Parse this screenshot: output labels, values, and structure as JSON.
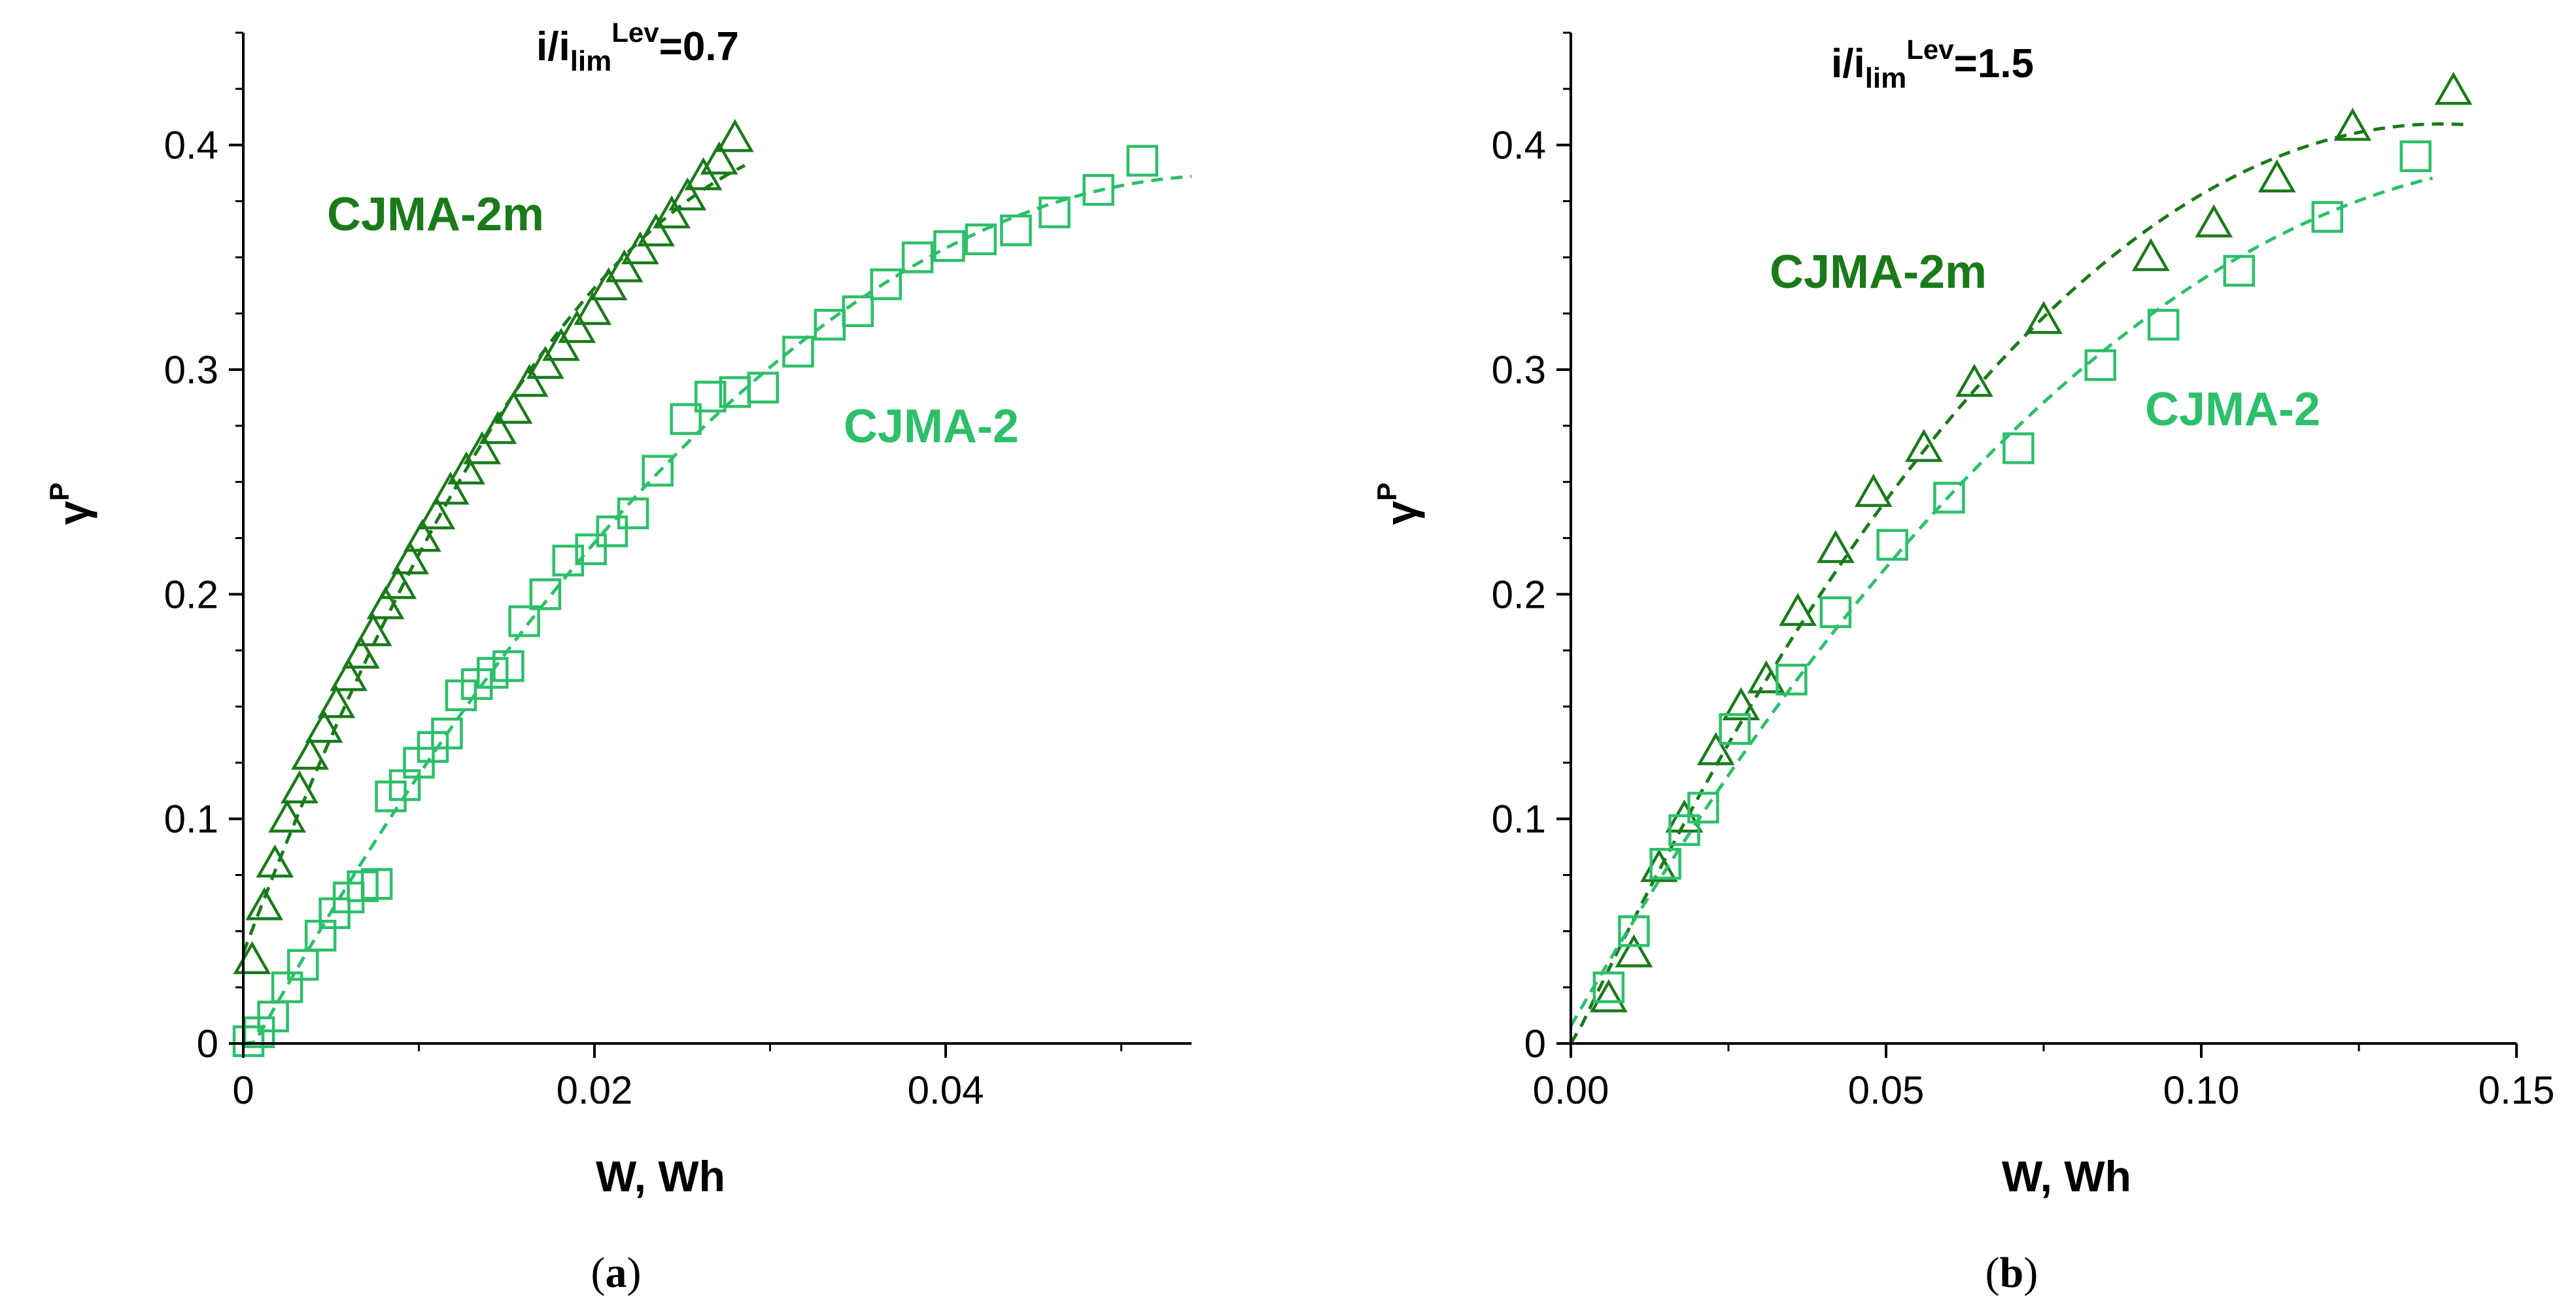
{
  "colors": {
    "cjma2m": "#1a7a1a",
    "cjma2": "#2dbf6a",
    "axis": "#000000"
  },
  "chart_data": [
    {
      "type": "scatter",
      "panel": "(a)",
      "caption_letter": "a",
      "title_main": "i/i",
      "title_sub": "lim",
      "title_sup": "Lev",
      "title_value": "=0.7",
      "xlabel": "W, Wh",
      "ylabel": "γ",
      "ylabel_sup": "P",
      "xlim": [
        0,
        0.054
      ],
      "ylim": [
        0,
        0.45
      ],
      "xticks": [
        0,
        0.02,
        0.04
      ],
      "xtick_labels": [
        "0",
        "0.02",
        "0.04"
      ],
      "yticks": [
        0,
        0.1,
        0.2,
        0.3,
        0.4
      ],
      "ytick_labels": [
        "0",
        "0.1",
        "0.2",
        "0.3",
        "0.4"
      ],
      "series": [
        {
          "name": "CJMA-2m",
          "marker": "triangle",
          "color": "#1a7a1a",
          "x": [
            0.0005,
            0.0012,
            0.0018,
            0.0025,
            0.0032,
            0.0038,
            0.0046,
            0.0053,
            0.006,
            0.0067,
            0.0074,
            0.0081,
            0.0088,
            0.0095,
            0.0102,
            0.011,
            0.0118,
            0.0127,
            0.0136,
            0.0145,
            0.0154,
            0.0163,
            0.0172,
            0.0181,
            0.019,
            0.0199,
            0.0208,
            0.0217,
            0.0226,
            0.0235,
            0.0244,
            0.0253,
            0.0262,
            0.0271,
            0.028
          ],
          "y": [
            0.037,
            0.061,
            0.08,
            0.1,
            0.113,
            0.128,
            0.14,
            0.151,
            0.163,
            0.173,
            0.183,
            0.195,
            0.204,
            0.215,
            0.225,
            0.235,
            0.246,
            0.255,
            0.264,
            0.273,
            0.282,
            0.294,
            0.302,
            0.31,
            0.318,
            0.326,
            0.337,
            0.345,
            0.353,
            0.361,
            0.369,
            0.377,
            0.386,
            0.393,
            0.403
          ]
        },
        {
          "name": "CJMA-2",
          "marker": "square",
          "color": "#2dbf6a",
          "x": [
            0.0003,
            0.0009,
            0.0017,
            0.0025,
            0.0034,
            0.0044,
            0.0052,
            0.006,
            0.0068,
            0.0076,
            0.0084,
            0.0092,
            0.01,
            0.0108,
            0.0116,
            0.0124,
            0.0133,
            0.0142,
            0.0151,
            0.016,
            0.0172,
            0.0185,
            0.0198,
            0.021,
            0.0222,
            0.0236,
            0.0252,
            0.0266,
            0.028,
            0.0296,
            0.0316,
            0.0334,
            0.035,
            0.0366,
            0.0384,
            0.0402,
            0.042,
            0.044,
            0.0462,
            0.0487,
            0.0512
          ],
          "y": [
            0.001,
            0.005,
            0.012,
            0.025,
            0.035,
            0.048,
            0.058,
            0.065,
            0.07,
            0.071,
            0.11,
            0.115,
            0.125,
            0.132,
            0.138,
            0.155,
            0.16,
            0.165,
            0.168,
            0.188,
            0.2,
            0.215,
            0.22,
            0.228,
            0.236,
            0.255,
            0.278,
            0.288,
            0.29,
            0.292,
            0.308,
            0.32,
            0.326,
            0.338,
            0.35,
            0.355,
            0.358,
            0.362,
            0.37,
            0.38,
            0.393
          ]
        }
      ]
    },
    {
      "type": "scatter",
      "panel": "(b)",
      "caption_letter": "b",
      "title_main": "i/i",
      "title_sub": "lim",
      "title_sup": "Lev",
      "title_value": "=1.5",
      "xlabel": "W, Wh",
      "ylabel": "γ",
      "ylabel_sup": "P",
      "xlim": [
        0,
        0.15
      ],
      "ylim": [
        0,
        0.45
      ],
      "xticks": [
        0,
        0.05,
        0.1,
        0.15
      ],
      "xtick_labels": [
        "0.00",
        "0.05",
        "0.10",
        "0.15"
      ],
      "yticks": [
        0,
        0.1,
        0.2,
        0.3,
        0.4
      ],
      "ytick_labels": [
        "0",
        "0.1",
        "0.2",
        "0.3",
        "0.4"
      ],
      "series": [
        {
          "name": "CJMA-2m",
          "marker": "triangle",
          "color": "#1a7a1a",
          "x": [
            0.006,
            0.01,
            0.014,
            0.018,
            0.023,
            0.027,
            0.031,
            0.036,
            0.042,
            0.048,
            0.056,
            0.064,
            0.075,
            0.092,
            0.102,
            0.112,
            0.124,
            0.14
          ],
          "y": [
            0.02,
            0.04,
            0.078,
            0.1,
            0.13,
            0.15,
            0.162,
            0.192,
            0.22,
            0.245,
            0.265,
            0.294,
            0.322,
            0.35,
            0.365,
            0.385,
            0.408,
            0.424
          ]
        },
        {
          "name": "CJMA-2",
          "marker": "square",
          "color": "#2dbf6a",
          "x": [
            0.006,
            0.01,
            0.015,
            0.018,
            0.021,
            0.026,
            0.035,
            0.042,
            0.051,
            0.06,
            0.071,
            0.084,
            0.094,
            0.106,
            0.12,
            0.134
          ],
          "y": [
            0.025,
            0.05,
            0.08,
            0.095,
            0.105,
            0.14,
            0.162,
            0.192,
            0.222,
            0.243,
            0.265,
            0.302,
            0.32,
            0.344,
            0.368,
            0.395
          ]
        }
      ]
    }
  ]
}
